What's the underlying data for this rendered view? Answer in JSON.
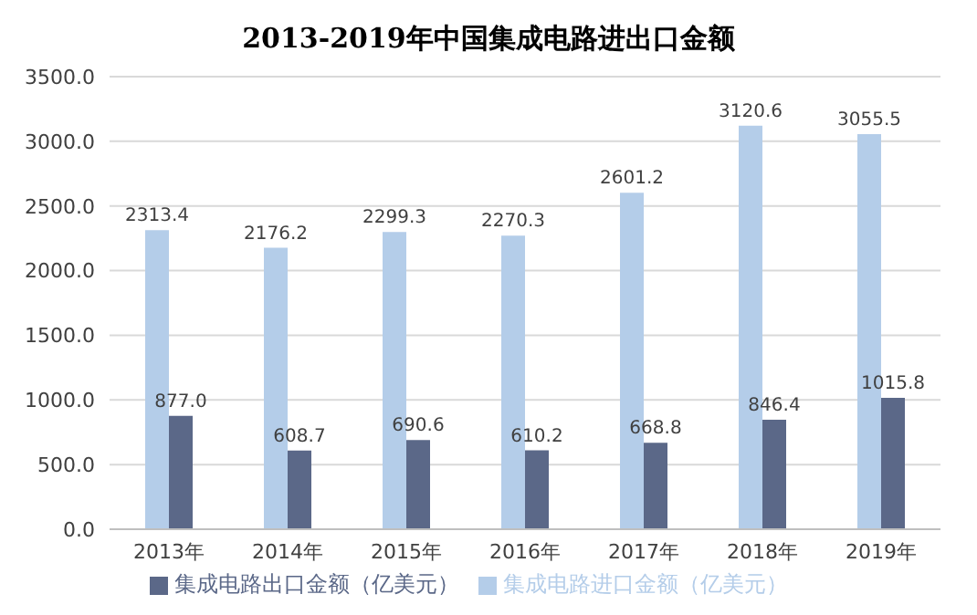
{
  "chart_data": {
    "type": "bar",
    "title": "2013-2019年中国集成电路进出口金额",
    "categories": [
      "2013年",
      "2014年",
      "2015年",
      "2016年",
      "2017年",
      "2018年",
      "2019年"
    ],
    "series": [
      {
        "name": "集成电路进口金额（亿美元）",
        "color": "#b4cde9",
        "values": [
          2313.4,
          2176.2,
          2299.3,
          2270.3,
          2601.2,
          3120.6,
          3055.5
        ],
        "value_labels": [
          "2313.4",
          "2176.2",
          "2299.3",
          "2270.3",
          "2601.2",
          "3120.6",
          "3055.5"
        ]
      },
      {
        "name": "集成电路出口金额（亿美元）",
        "color": "#5b6888",
        "values": [
          877.0,
          608.7,
          690.6,
          610.2,
          668.8,
          846.4,
          1015.8
        ],
        "value_labels": [
          "877.0",
          "608.7",
          "690.6",
          "610.2",
          "668.8",
          "846.4",
          "1015.8"
        ]
      }
    ],
    "ylim": [
      0,
      3500
    ],
    "yticks": [
      {
        "value": 0,
        "label": "0.0"
      },
      {
        "value": 500,
        "label": "500.0"
      },
      {
        "value": 1000,
        "label": "1000.0"
      },
      {
        "value": 1500,
        "label": "1500.0"
      },
      {
        "value": 2000,
        "label": "2000.0"
      },
      {
        "value": 2500,
        "label": "2500.0"
      },
      {
        "value": 3000,
        "label": "3000.0"
      },
      {
        "value": 3500,
        "label": "3500.0"
      }
    ],
    "grid": "y",
    "legend": "bottom"
  }
}
